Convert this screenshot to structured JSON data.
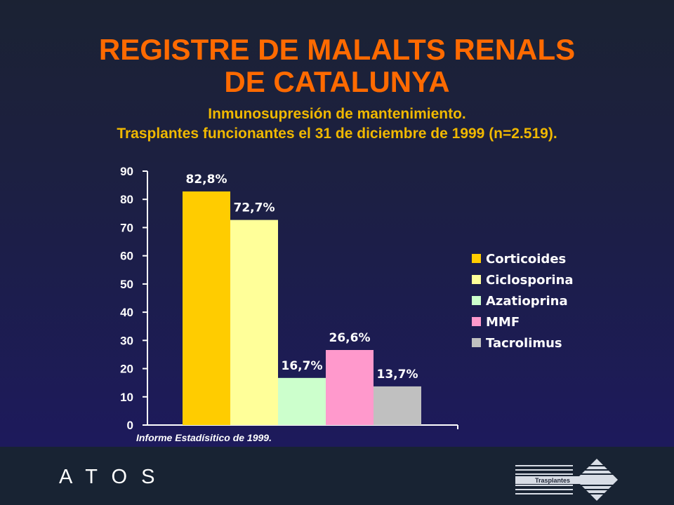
{
  "header": {
    "title_line1": "REGISTRE DE MALALTS RENALS",
    "title_line2": "DE CATALUNYA",
    "subtitle_line1": "Inmunosupresión de mantenimiento.",
    "subtitle_line2": "Trasplantes funcionantes el 31 de diciembre de 1999 (n=2.519)."
  },
  "source_note": "Informe Estadísitico de 1999.",
  "footer": {
    "brand": "A T O S",
    "logo_text": "Trasplantes",
    "logo_icon": "trasplantes-logo-icon"
  },
  "colors": {
    "title": "#ff6a00",
    "subtitle": "#f0b800"
  },
  "chart_data": {
    "type": "bar",
    "categories": [
      "Corticoides",
      "Ciclosporina",
      "Azatioprina",
      "MMF",
      "Tacrolimus"
    ],
    "values": [
      82.8,
      72.7,
      16.7,
      26.6,
      13.7
    ],
    "data_labels": [
      "82,8%",
      "72,7%",
      "16,7%",
      "26,6%",
      "13,7%"
    ],
    "colors": [
      "#ffcc00",
      "#ffff99",
      "#ccffcc",
      "#ff99cc",
      "#c0c0c0"
    ],
    "ylim": [
      0,
      90
    ],
    "yticks": [
      0,
      10,
      20,
      30,
      40,
      50,
      60,
      70,
      80,
      90
    ],
    "title": "",
    "xlabel": "",
    "ylabel": "",
    "grid": false,
    "legend_position": "right"
  }
}
